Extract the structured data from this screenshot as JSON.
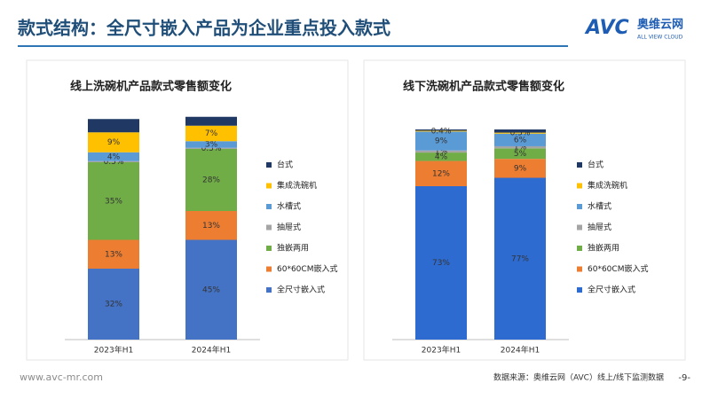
{
  "header": {
    "title": "款式结构：全尺寸嵌入产品为企业重点投入款式",
    "logo": "AVC",
    "logo_name": "奥维云网",
    "logo_sub": "ALL VIEW CLOUD"
  },
  "chart_data": [
    {
      "type": "bar",
      "stacked": true,
      "title": "线上洗碗机产品款式零售额变化",
      "categories": [
        "2023年H1",
        "2024年H1"
      ],
      "ylim": [
        0,
        100
      ],
      "series": [
        {
          "name": "全尺寸嵌入式",
          "color": "#4472c4",
          "values": [
            32,
            45
          ],
          "value_labels": [
            "32%",
            "45%"
          ]
        },
        {
          "name": "60*60CM嵌入式",
          "color": "#ed7d31",
          "values": [
            13,
            13
          ],
          "value_labels": [
            "13%",
            "13%"
          ]
        },
        {
          "name": "独嵌两用",
          "color": "#70ad47",
          "values": [
            35,
            28
          ],
          "value_labels": [
            "35%",
            "28%"
          ]
        },
        {
          "name": "抽屉式",
          "color": "#a5a5a5",
          "values": [
            0.5,
            0.5
          ],
          "value_labels": [
            "0.5%",
            "0.5%"
          ]
        },
        {
          "name": "水槽式",
          "color": "#5b9bd5",
          "values": [
            4,
            3
          ],
          "value_labels": [
            "4%",
            "3%"
          ]
        },
        {
          "name": "集成洗碗机",
          "color": "#ffc000",
          "values": [
            9,
            7
          ],
          "value_labels": [
            "9%",
            "7%"
          ]
        },
        {
          "name": "台式",
          "color": "#1f3864",
          "values": [
            6,
            4
          ],
          "value_labels": [
            null,
            null
          ]
        }
      ]
    },
    {
      "type": "bar",
      "stacked": true,
      "title": "线下洗碗机产品款式零售额变化",
      "categories": [
        "2023年H1",
        "2024年H1"
      ],
      "ylim": [
        0,
        100
      ],
      "series": [
        {
          "name": "全尺寸嵌入式",
          "color": "#2e6bd0",
          "values": [
            73,
            77
          ],
          "value_labels": [
            "73%",
            "77%"
          ]
        },
        {
          "name": "60*60CM嵌入式",
          "color": "#ed7d31",
          "values": [
            12,
            9
          ],
          "value_labels": [
            "12%",
            "9%"
          ]
        },
        {
          "name": "独嵌两用",
          "color": "#70ad47",
          "values": [
            4,
            5
          ],
          "value_labels": [
            "4%",
            "5%"
          ]
        },
        {
          "name": "抽屉式",
          "color": "#a5a5a5",
          "values": [
            1,
            1
          ],
          "value_labels": [
            "1%",
            "1%"
          ]
        },
        {
          "name": "水槽式",
          "color": "#5b9bd5",
          "values": [
            9,
            6
          ],
          "value_labels": [
            "9%",
            "6%"
          ]
        },
        {
          "name": "集成洗碗机",
          "color": "#ffc000",
          "values": [
            0.4,
            0.5
          ],
          "value_labels": [
            "0.4%",
            "0.5%"
          ]
        },
        {
          "name": "台式",
          "color": "#1f3864",
          "values": [
            0.6,
            1.5
          ],
          "value_labels": [
            null,
            null
          ]
        }
      ]
    }
  ],
  "footer": {
    "website": "www.avc-mr.com",
    "source": "数据来源：奥维云网（AVC）线上/线下监测数据",
    "page": "-9-"
  }
}
